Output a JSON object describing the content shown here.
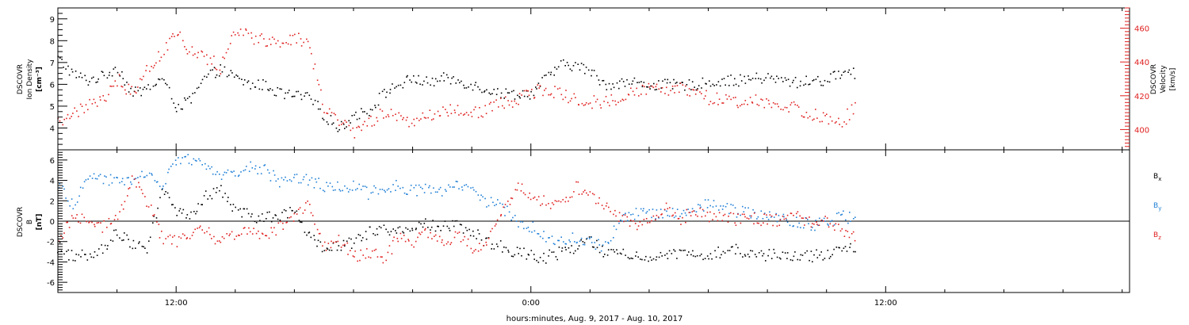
{
  "figure": {
    "xlabel": "hours:minutes, Aug.  9, 2017 - Aug. 10, 2017"
  },
  "chart_data": [
    {
      "type": "scatter",
      "panel": "top",
      "x_axis": {
        "range_hours": [
          8.0,
          44.25
        ],
        "tick_labels": [
          {
            "label": "12:00",
            "hours": 12
          },
          {
            "label": "0:00",
            "hours": 24
          },
          {
            "label": "12:00",
            "hours": 36
          }
        ]
      },
      "left_axis": {
        "label_lines": [
          "DSCOVR",
          "Ion Density",
          "[cm⁻³]"
        ],
        "ylim": [
          3.0,
          9.5
        ],
        "ticks": [
          4,
          5,
          6,
          7,
          8,
          9
        ],
        "color": "#000000"
      },
      "right_axis": {
        "label_lines": [
          "DSCOVR",
          "Velocity",
          "[km/s]"
        ],
        "ylim": [
          388,
          472
        ],
        "ticks": [
          400,
          420,
          440,
          460
        ],
        "color": "#e02020"
      },
      "series": [
        {
          "axis": "left",
          "color": "#000000",
          "x_hours": [
            8.0,
            8.5,
            9.0,
            9.5,
            10.0,
            10.5,
            11.0,
            11.5,
            12.0,
            12.5,
            13.0,
            13.5,
            14.0,
            14.5,
            15.0,
            15.5,
            16.0,
            16.5,
            17.0,
            17.5,
            18.0,
            18.5,
            19.0,
            19.5,
            20.0,
            20.5,
            21.0,
            21.5,
            22.0,
            22.5,
            23.0,
            23.5,
            24.0,
            24.5,
            25.0,
            25.5,
            26.0,
            26.5,
            27.0,
            27.5,
            28.0,
            28.5,
            29.0,
            29.5,
            30.0,
            30.5,
            31.0,
            31.5,
            32.0,
            32.5,
            33.0,
            33.5,
            34.0,
            34.5,
            35.0
          ],
          "y": [
            7.2,
            6.5,
            6.2,
            6.4,
            6.8,
            5.6,
            5.8,
            6.3,
            5.0,
            5.3,
            6.4,
            6.7,
            6.3,
            6.0,
            6.0,
            5.6,
            5.5,
            5.4,
            4.6,
            4.0,
            4.6,
            4.8,
            5.6,
            6.0,
            6.3,
            6.1,
            6.3,
            6.2,
            6.0,
            5.8,
            5.6,
            5.6,
            5.6,
            6.3,
            6.9,
            6.9,
            6.6,
            6.0,
            6.1,
            6.1,
            6.0,
            6.0,
            6.0,
            6.0,
            6.1,
            6.2,
            6.2,
            6.3,
            6.3,
            6.2,
            6.1,
            6.2,
            6.2,
            6.6,
            6.5
          ]
        },
        {
          "axis": "right",
          "color": "#e02020",
          "x_hours": [
            8.0,
            8.5,
            9.0,
            9.5,
            10.0,
            10.5,
            11.0,
            11.5,
            12.0,
            12.5,
            13.0,
            13.5,
            14.0,
            14.5,
            15.0,
            15.5,
            16.0,
            16.5,
            17.0,
            17.5,
            18.0,
            18.5,
            19.0,
            19.5,
            20.0,
            20.5,
            21.0,
            21.5,
            22.0,
            22.5,
            23.0,
            23.5,
            24.0,
            24.5,
            25.0,
            25.5,
            26.0,
            26.5,
            27.0,
            27.5,
            28.0,
            28.5,
            29.0,
            29.5,
            30.0,
            30.5,
            31.0,
            31.5,
            32.0,
            32.5,
            33.0,
            33.5,
            34.0,
            34.5,
            35.0
          ],
          "y": [
            405,
            410,
            414,
            418,
            430,
            422,
            438,
            445,
            458,
            446,
            443,
            437,
            459,
            455,
            453,
            451,
            455,
            449,
            412,
            404,
            399,
            404,
            410,
            407,
            405,
            409,
            412,
            412,
            410,
            412,
            416,
            418,
            422,
            425,
            421,
            419,
            417,
            416,
            420,
            422,
            425,
            425,
            424,
            423,
            419,
            418,
            415,
            417,
            416,
            414,
            413,
            409,
            407,
            405,
            415
          ]
        }
      ]
    },
    {
      "type": "scatter",
      "panel": "bottom",
      "x_axis": {
        "range_hours": [
          8.0,
          44.25
        ],
        "tick_labels": [
          {
            "label": "12:00",
            "hours": 12
          },
          {
            "label": "0:00",
            "hours": 24
          },
          {
            "label": "12:00",
            "hours": 36
          }
        ]
      },
      "left_axis": {
        "label_lines": [
          "DSCOVR",
          "B",
          "[nT]"
        ],
        "ylim": [
          -7.0,
          7.0
        ],
        "ticks": [
          -6,
          -4,
          -2,
          0,
          2,
          4,
          6
        ],
        "color": "#000000"
      },
      "zero_line": true,
      "series": [
        {
          "name": "B",
          "subscript": "x",
          "color": "#000000",
          "x_hours": [
            8.0,
            8.5,
            9.0,
            9.5,
            10.0,
            10.5,
            11.0,
            11.5,
            12.0,
            12.5,
            13.0,
            13.5,
            14.0,
            14.5,
            15.0,
            15.5,
            16.0,
            16.5,
            17.0,
            17.5,
            18.0,
            18.5,
            19.0,
            19.5,
            20.0,
            20.5,
            21.0,
            21.5,
            22.0,
            22.5,
            23.0,
            23.5,
            24.0,
            24.5,
            25.0,
            25.5,
            26.0,
            26.5,
            27.0,
            27.5,
            28.0,
            28.5,
            29.0,
            29.5,
            30.0,
            30.5,
            31.0,
            31.5,
            32.0,
            32.5,
            33.0,
            33.5,
            34.0,
            34.5,
            35.0
          ],
          "y": [
            -2.5,
            -3.5,
            -3.2,
            -2.5,
            -1.0,
            -2.3,
            -2.6,
            3.0,
            1.0,
            0.4,
            2.5,
            3.0,
            1.0,
            0.6,
            0.3,
            0.6,
            1.0,
            -1.5,
            -2.5,
            -2.4,
            -2.0,
            -1.0,
            -0.5,
            -1.0,
            -0.8,
            -0.2,
            -0.5,
            -0.4,
            -1.0,
            -2.0,
            -2.5,
            -3.0,
            -3.3,
            -3.5,
            -3.0,
            -2.5,
            -2.0,
            -3.0,
            -3.2,
            -3.3,
            -3.3,
            -3.3,
            -3.3,
            -3.4,
            -3.2,
            -3.0,
            -2.8,
            -3.0,
            -3.3,
            -3.3,
            -3.4,
            -3.4,
            -3.2,
            -3.0,
            -2.5
          ]
        },
        {
          "name": "B",
          "subscript": "y",
          "color": "#1e7fd6",
          "x_hours": [
            8.0,
            8.5,
            9.0,
            9.5,
            10.0,
            10.5,
            11.0,
            11.5,
            12.0,
            12.5,
            13.0,
            13.5,
            14.0,
            14.5,
            15.0,
            15.5,
            16.0,
            16.5,
            17.0,
            17.5,
            18.0,
            18.5,
            19.0,
            19.5,
            20.0,
            20.5,
            21.0,
            21.5,
            22.0,
            22.5,
            23.0,
            23.5,
            24.0,
            24.5,
            25.0,
            25.5,
            26.0,
            26.5,
            27.0,
            27.5,
            28.0,
            28.5,
            29.0,
            29.5,
            30.0,
            30.5,
            31.0,
            31.5,
            32.0,
            32.5,
            33.0,
            33.5,
            34.0,
            34.5,
            35.0
          ],
          "y": [
            3.8,
            1.5,
            4.5,
            4.3,
            4.0,
            4.2,
            5.0,
            3.5,
            6.0,
            6.1,
            5.5,
            4.5,
            5.0,
            5.3,
            5.0,
            4.0,
            4.5,
            4.0,
            3.5,
            3.5,
            3.4,
            2.8,
            3.2,
            3.5,
            3.0,
            3.2,
            3.0,
            3.5,
            3.0,
            2.0,
            1.5,
            0.0,
            -0.5,
            -1.5,
            -1.8,
            -1.5,
            -2.0,
            -2.5,
            0.5,
            0.8,
            0.8,
            0.7,
            0.8,
            1.0,
            2.0,
            1.5,
            1.0,
            0.8,
            0.4,
            0.4,
            0.0,
            -0.3,
            0.0,
            0.5,
            0.2
          ]
        },
        {
          "name": "B",
          "subscript": "z",
          "color": "#e02020",
          "x_hours": [
            8.0,
            8.5,
            9.0,
            9.5,
            10.0,
            10.5,
            11.0,
            11.5,
            12.0,
            12.5,
            13.0,
            13.5,
            14.0,
            14.5,
            15.0,
            15.5,
            16.0,
            16.5,
            17.0,
            17.5,
            18.0,
            18.5,
            19.0,
            19.5,
            20.0,
            20.5,
            21.0,
            21.5,
            22.0,
            22.5,
            23.0,
            23.5,
            24.0,
            24.5,
            25.0,
            25.5,
            26.0,
            26.5,
            27.0,
            27.5,
            28.0,
            28.5,
            29.0,
            29.5,
            30.0,
            30.5,
            31.0,
            31.5,
            32.0,
            32.5,
            33.0,
            33.5,
            34.0,
            34.5,
            35.0
          ],
          "y": [
            -1.5,
            0.5,
            0.0,
            -0.5,
            0.5,
            4.0,
            2.0,
            -1.5,
            -2.0,
            -1.0,
            -1.0,
            -2.0,
            -1.2,
            -1.0,
            -1.3,
            -0.5,
            0.5,
            2.0,
            -2.5,
            -1.8,
            -3.5,
            -3.0,
            -3.6,
            -1.5,
            -2.0,
            -1.0,
            -2.0,
            -1.5,
            -2.5,
            -2.0,
            1.0,
            3.5,
            2.5,
            2.0,
            1.5,
            3.5,
            2.5,
            1.5,
            0.5,
            -0.3,
            0.2,
            1.5,
            0.2,
            1.0,
            0.5,
            0.6,
            0.2,
            0.4,
            0.1,
            0.2,
            0.5,
            -0.2,
            0.0,
            -1.0,
            -1.5
          ]
        }
      ]
    }
  ]
}
